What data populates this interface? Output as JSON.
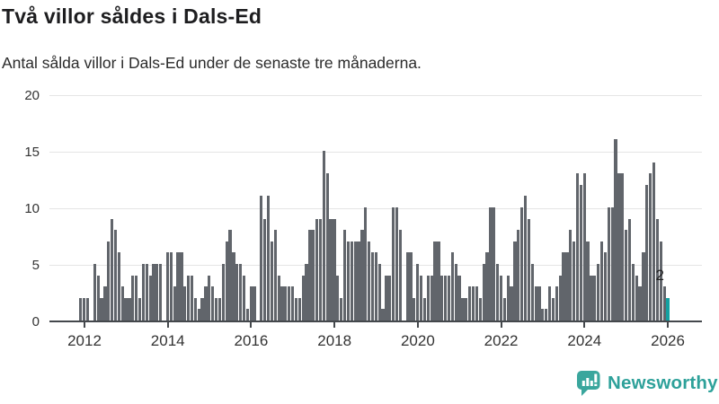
{
  "header": {
    "title": "Två villor såldes i Dals-Ed",
    "subtitle": "Antal sålda villor i Dals-Ed under de senaste tre månaderna."
  },
  "chart_data": {
    "type": "bar",
    "title": "Två villor såldes i Dals-Ed",
    "subtitle": "Antal sålda villor i Dals-Ed under de senaste tre månaderna.",
    "frequency": "monthly",
    "x_start": "2011-12",
    "x_end": "2026-01",
    "ylim": [
      0,
      20
    ],
    "y_ticks": [
      0,
      5,
      10,
      15,
      20
    ],
    "x_tick_labels": [
      "2012",
      "2014",
      "2016",
      "2018",
      "2020",
      "2022",
      "2024",
      "2026"
    ],
    "grid": true,
    "bar_color": "#61656b",
    "highlight": {
      "index": 169,
      "value": 2,
      "label": "2",
      "color": "#14a1a1"
    },
    "values": [
      2,
      2,
      2,
      0,
      5,
      4,
      2,
      3,
      7,
      9,
      8,
      6,
      3,
      2,
      2,
      4,
      4,
      2,
      5,
      5,
      4,
      5,
      5,
      5,
      0,
      6,
      6,
      3,
      6,
      6,
      3,
      4,
      4,
      2,
      1,
      2,
      3,
      4,
      3,
      2,
      2,
      5,
      7,
      8,
      6,
      5,
      5,
      4,
      1,
      3,
      3,
      0,
      11,
      9,
      11,
      7,
      8,
      4,
      3,
      3,
      3,
      3,
      2,
      2,
      4,
      5,
      8,
      8,
      9,
      9,
      15,
      13,
      9,
      9,
      4,
      2,
      8,
      7,
      7,
      7,
      7,
      8,
      10,
      7,
      6,
      6,
      5,
      1,
      4,
      4,
      10,
      10,
      8,
      0,
      6,
      6,
      2,
      5,
      4,
      2,
      4,
      4,
      7,
      7,
      4,
      4,
      4,
      6,
      5,
      4,
      2,
      2,
      3,
      3,
      3,
      2,
      5,
      6,
      10,
      10,
      5,
      4,
      2,
      4,
      3,
      7,
      8,
      10,
      11,
      9,
      5,
      3,
      3,
      1,
      1,
      3,
      2,
      3,
      4,
      6,
      6,
      8,
      7,
      13,
      12,
      13,
      7,
      4,
      4,
      5,
      7,
      6,
      10,
      10,
      16,
      13,
      13,
      8,
      9,
      5,
      4,
      3,
      6,
      12,
      13,
      14,
      9,
      7,
      3,
      2
    ]
  },
  "footer": {
    "brand": "Newsworthy",
    "brand_icon": "bar-chart-speech-bubble-icon"
  },
  "colors": {
    "bar": "#61656b",
    "highlight": "#14a1a1",
    "axis": "#44484c",
    "grid": "#e5e5e5",
    "brand": "#2ea19a"
  }
}
